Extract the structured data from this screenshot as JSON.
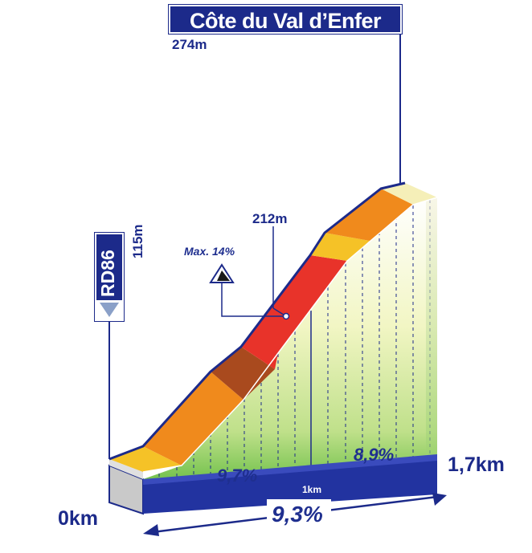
{
  "climb": {
    "name": "Côte du Val d’Enfer",
    "summit_altitude": "274m",
    "start_road": "RD86",
    "start_altitude": "115m",
    "max_gradient_label": "Max. 14%",
    "max_gradient_altitude": "212m",
    "start_km": "0km",
    "end_km": "1,7km",
    "mid_km": "1km",
    "average_gradient": "9,3%",
    "segment_gradients": [
      "9,7%",
      "8,9%"
    ]
  },
  "colors": {
    "brand": "#1c2a8a",
    "yellow": "#f5c227",
    "orange": "#f08a1c",
    "red": "#e8332a",
    "brown": "#a94a1e",
    "pale": "#f5efb8"
  }
}
